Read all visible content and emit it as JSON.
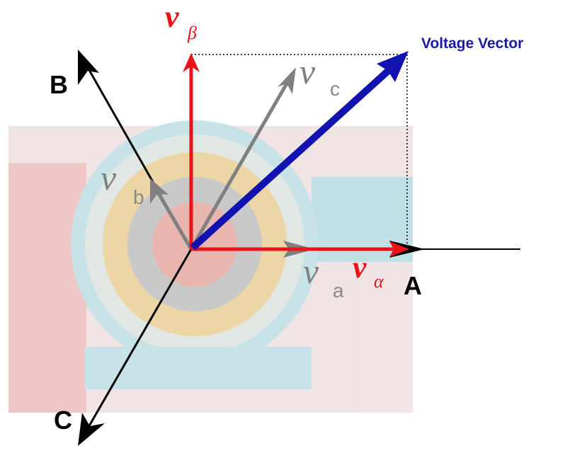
{
  "axes": {
    "a": "A",
    "b": "B",
    "c": "C"
  },
  "voltage_vector": "Voltage Vector",
  "components": {
    "v_beta": {
      "symbol": "v",
      "subscript": "β"
    },
    "v_alpha": {
      "symbol": "v",
      "subscript": "α"
    },
    "v_a": {
      "symbol": "v",
      "subscript": "a"
    },
    "v_b": {
      "symbol": "v",
      "subscript": "b"
    },
    "v_c": {
      "symbol": "v",
      "subscript": "c"
    }
  }
}
